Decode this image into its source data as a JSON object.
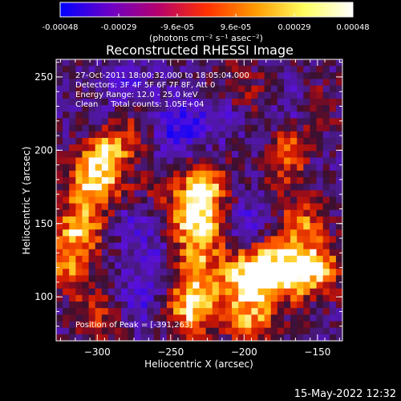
{
  "colorbar": {
    "ticks": [
      "-0.00048",
      "-0.00029",
      "-9.6e-05",
      "9.6e-05",
      "0.00029",
      "0.00048"
    ],
    "unit_label": "(photons cm⁻² s⁻¹ asec⁻²)",
    "range": [
      -0.00048,
      0.00048
    ],
    "colors": [
      "#0000ff",
      "#6a00c8",
      "#b4006e",
      "#ff3000",
      "#ff9a00",
      "#ffff60",
      "#ffffff"
    ]
  },
  "chart_data": {
    "type": "heatmap",
    "title": "Reconstructed RHESSI Image",
    "xlabel": "Heliocentric X (arcsec)",
    "ylabel": "Heliocentric Y (arcsec)",
    "xlim": [
      -328,
      -133
    ],
    "ylim": [
      70,
      262
    ],
    "xticks": [
      -300,
      -250,
      -200,
      -150
    ],
    "yticks": [
      100,
      150,
      200,
      250
    ],
    "annotations": [
      "27-Oct-2011 18:00:32.000 to 18:05:04.000",
      "Detectors: 3F 4F 5F 6F 7F 8F, Att 0",
      "Energy Range: 12.0 - 25.0 keV",
      "Clean     Total counts: 1.05E+04"
    ],
    "peak_label": "Position of Peak = [-391,263]",
    "grid_cols": 44,
    "grid_rows": 43,
    "hotspots": [
      {
        "x": -302,
        "y": 178,
        "v": 0.9,
        "r": 14
      },
      {
        "x": -292,
        "y": 200,
        "v": 0.7,
        "r": 10
      },
      {
        "x": -312,
        "y": 145,
        "v": 0.75,
        "r": 12
      },
      {
        "x": -320,
        "y": 120,
        "v": 0.55,
        "r": 12
      },
      {
        "x": -300,
        "y": 88,
        "v": 0.45,
        "r": 12
      },
      {
        "x": -228,
        "y": 175,
        "v": 0.8,
        "r": 12
      },
      {
        "x": -232,
        "y": 148,
        "v": 0.95,
        "r": 14
      },
      {
        "x": -240,
        "y": 120,
        "v": 0.8,
        "r": 12
      },
      {
        "x": -235,
        "y": 92,
        "v": 0.85,
        "r": 13
      },
      {
        "x": -200,
        "y": 112,
        "v": 0.85,
        "r": 14
      },
      {
        "x": -175,
        "y": 118,
        "v": 0.95,
        "r": 14
      },
      {
        "x": -150,
        "y": 118,
        "v": 0.75,
        "r": 12
      },
      {
        "x": -160,
        "y": 150,
        "v": 0.6,
        "r": 12
      },
      {
        "x": -195,
        "y": 82,
        "v": 0.6,
        "r": 12
      },
      {
        "x": -170,
        "y": 185,
        "v": 0.45,
        "r": 10
      },
      {
        "x": -168,
        "y": 205,
        "v": 0.5,
        "r": 8
      },
      {
        "x": -270,
        "y": 215,
        "v": 0.4,
        "r": 12
      },
      {
        "x": -205,
        "y": 240,
        "v": 0.35,
        "r": 14
      },
      {
        "x": -150,
        "y": 230,
        "v": 0.3,
        "r": 12
      },
      {
        "x": -260,
        "y": 175,
        "v": 0.25,
        "r": 10
      }
    ],
    "coldspots": [
      {
        "x": -248,
        "y": 215,
        "v": -0.55,
        "r": 14
      },
      {
        "x": -250,
        "y": 125,
        "v": -0.55,
        "r": 12
      },
      {
        "x": -270,
        "y": 100,
        "v": -0.35,
        "r": 14
      },
      {
        "x": -200,
        "y": 150,
        "v": -0.4,
        "r": 12
      },
      {
        "x": -215,
        "y": 225,
        "v": -0.35,
        "r": 12
      },
      {
        "x": -280,
        "y": 245,
        "v": -0.35,
        "r": 12
      },
      {
        "x": -165,
        "y": 232,
        "v": -0.3,
        "r": 10
      },
      {
        "x": -275,
        "y": 150,
        "v": -0.3,
        "r": 12
      }
    ],
    "background": -0.15,
    "grid": false
  },
  "footer": {
    "timestamp": "15-May-2022 12:32"
  }
}
